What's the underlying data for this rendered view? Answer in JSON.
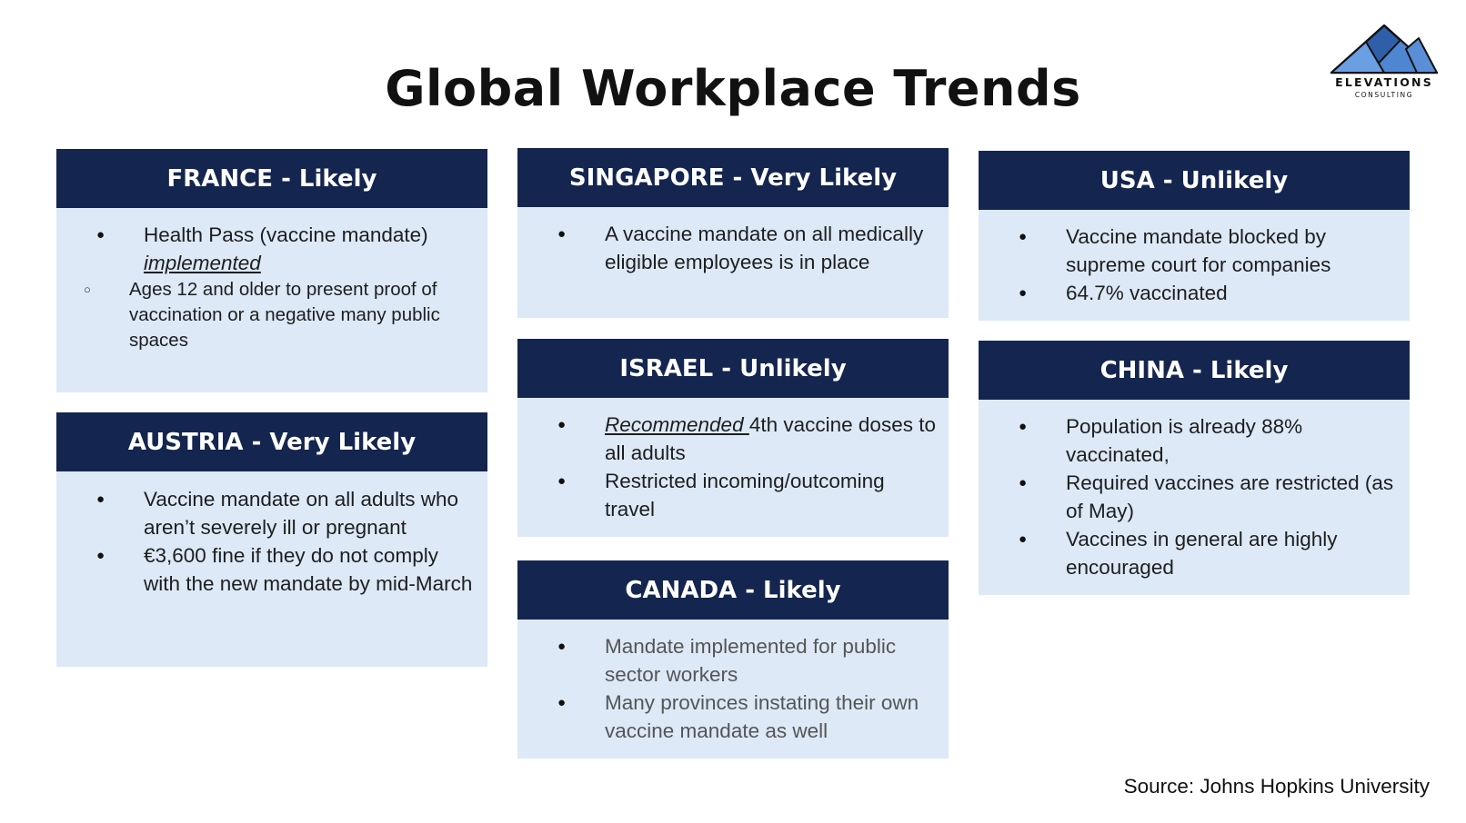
{
  "slide": {
    "title": "Global Workplace Trends",
    "logo": {
      "name": "ELEVATIONS",
      "sub": "CONSULTING",
      "colors": {
        "front": "#5a8fd8",
        "back": "#2f5fa8",
        "outline": "#111111"
      }
    },
    "source": "Source: Johns Hopkins University"
  },
  "colors": {
    "header_bg": "#14254f",
    "card_bg": "#dde9f7"
  },
  "cards": {
    "france": {
      "heading": "FRANCE - Likely",
      "bullets": [
        {
          "text": "Health Pass (vaccine mandate) ",
          "emphasis": "implemented",
          "sub": [
            "Ages 12 and older to present proof of vaccination or a negative many public spaces"
          ]
        }
      ]
    },
    "austria": {
      "heading": "AUSTRIA - Very Likely",
      "bullets": [
        {
          "text": "Vaccine mandate on all adults who aren’t severely ill or pregnant"
        },
        {
          "text": "€3,600 fine if they do not comply with the new mandate by mid-March"
        }
      ]
    },
    "singapore": {
      "heading": "SINGAPORE - Very Likely",
      "bullets": [
        {
          "text": "A vaccine mandate on all medically eligible employees is in place"
        }
      ]
    },
    "israel": {
      "heading": "ISRAEL - Unlikely",
      "bullets": [
        {
          "emphasis": "Recommended ",
          "text": "4th vaccine doses to all adults"
        },
        {
          "text": "Restricted incoming/outcoming travel"
        }
      ]
    },
    "canada": {
      "heading": "CANADA - Likely",
      "bullets": [
        {
          "text": "Mandate implemented for public sector workers"
        },
        {
          "text": "Many provinces instating their own vaccine mandate as well"
        }
      ]
    },
    "usa": {
      "heading": "USA - Unlikely",
      "bullets": [
        {
          "text": "Vaccine mandate blocked by supreme court for companies"
        },
        {
          "text": "64.7% vaccinated"
        }
      ]
    },
    "china": {
      "heading": "CHINA - Likely",
      "bullets": [
        {
          "text": "Population is already 88% vaccinated,"
        },
        {
          "text": "Required vaccines are restricted (as of May)"
        },
        {
          "text": "Vaccines in general are highly encouraged"
        }
      ]
    }
  }
}
